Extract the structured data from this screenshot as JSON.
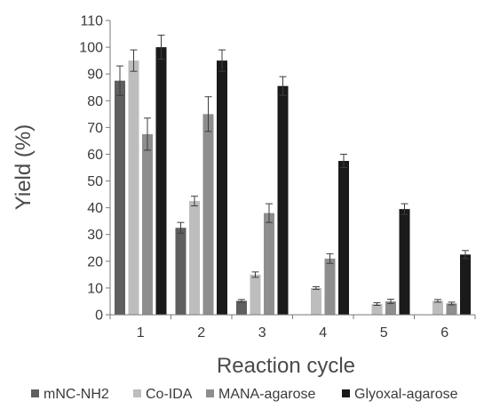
{
  "chart_data": {
    "type": "bar",
    "xlabel": "Reaction cycle",
    "ylabel": "Yield (%)",
    "ylim": [
      0,
      110
    ],
    "yticks": [
      0,
      10,
      20,
      30,
      40,
      50,
      60,
      70,
      80,
      90,
      100,
      110
    ],
    "categories": [
      "1",
      "2",
      "3",
      "4",
      "5",
      "6"
    ],
    "grid": false,
    "legend_position": "bottom",
    "series": [
      {
        "name": "mNC-NH2",
        "color": "#5f5f5f",
        "values": [
          87.5,
          32.5,
          5.2,
          null,
          null,
          null
        ],
        "errors": [
          5.5,
          2.0,
          0.5,
          null,
          null,
          null
        ]
      },
      {
        "name": "Co-IDA",
        "color": "#bdbdbd",
        "values": [
          95,
          42.5,
          15,
          10,
          4,
          5.2
        ],
        "errors": [
          4.0,
          1.8,
          1.0,
          0.5,
          0.5,
          0.5
        ]
      },
      {
        "name": "MANA-agarose",
        "color": "#8e8e8e",
        "values": [
          67.5,
          75,
          38,
          21,
          5,
          4.2
        ],
        "errors": [
          6.0,
          6.5,
          3.5,
          1.8,
          0.8,
          0.5
        ]
      },
      {
        "name": "Glyoxal-agarose",
        "color": "#1a1a1a",
        "values": [
          100,
          95,
          85.5,
          57.5,
          39.5,
          22.5
        ],
        "errors": [
          4.5,
          4.0,
          3.5,
          2.5,
          2.0,
          1.5
        ]
      }
    ]
  }
}
